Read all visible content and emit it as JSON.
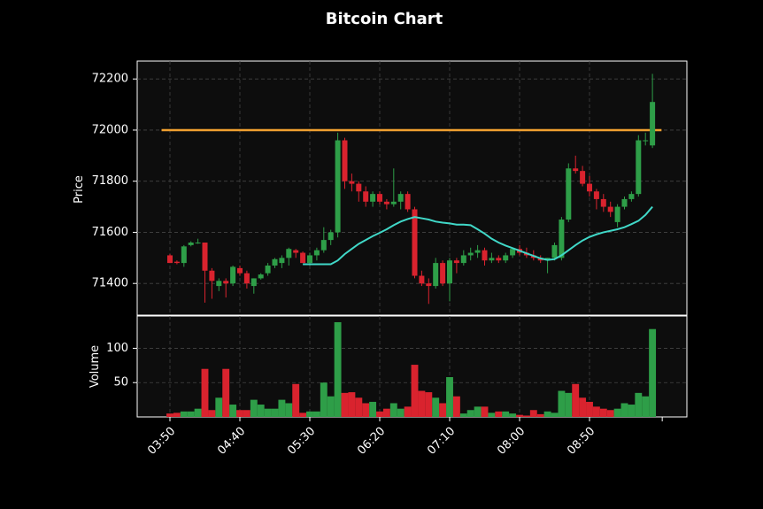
{
  "chart_data": {
    "type": "candlestick",
    "title": "Bitcoin Chart",
    "ylabel": "Price",
    "x": [
      "03:50",
      "03:55",
      "04:00",
      "04:05",
      "04:10",
      "04:15",
      "04:20",
      "04:25",
      "04:30",
      "04:35",
      "04:40",
      "04:45",
      "04:50",
      "04:55",
      "05:00",
      "05:05",
      "05:10",
      "05:15",
      "05:20",
      "05:25",
      "05:30",
      "05:35",
      "05:40",
      "05:45",
      "05:50",
      "05:55",
      "06:00",
      "06:05",
      "06:10",
      "06:15",
      "06:20",
      "06:25",
      "06:30",
      "06:35",
      "06:40",
      "06:45",
      "06:50",
      "06:55",
      "07:00",
      "07:05",
      "07:10",
      "07:15",
      "07:20",
      "07:25",
      "07:30",
      "07:35",
      "07:40",
      "07:45",
      "07:50",
      "07:55",
      "08:00",
      "08:05",
      "08:10",
      "08:15",
      "08:20",
      "08:25",
      "08:30",
      "08:35",
      "08:40",
      "08:45",
      "08:50",
      "08:55",
      "09:00",
      "09:05",
      "09:10",
      "09:15",
      "09:20",
      "09:25",
      "09:30",
      "09:35"
    ],
    "open": [
      71510,
      71485,
      71480,
      71550,
      71560,
      71560,
      71450,
      71390,
      71410,
      71400,
      71460,
      71440,
      71390,
      71420,
      71440,
      71470,
      71480,
      71500,
      71530,
      71520,
      71480,
      71510,
      71530,
      71570,
      71600,
      71960,
      71800,
      71790,
      71760,
      71720,
      71750,
      71720,
      71710,
      71720,
      71750,
      71690,
      71430,
      71400,
      71390,
      71480,
      71400,
      71490,
      71480,
      71510,
      71520,
      71530,
      71490,
      71500,
      71490,
      71510,
      71535,
      71520,
      71510,
      71500,
      71490,
      71500,
      71500,
      71650,
      71850,
      71840,
      71790,
      71760,
      71730,
      71700,
      71640,
      71700,
      71730,
      71750,
      71960,
      71940
    ],
    "high": [
      71515,
      71490,
      71550,
      71565,
      71575,
      71560,
      71460,
      71420,
      71420,
      71470,
      71470,
      71450,
      71420,
      71440,
      71480,
      71500,
      71510,
      71540,
      71535,
      71525,
      71520,
      71540,
      71620,
      71610,
      71990,
      71970,
      71830,
      71800,
      71780,
      71760,
      71760,
      71730,
      71850,
      71760,
      71760,
      71700,
      71450,
      71420,
      71500,
      71490,
      71500,
      71500,
      71530,
      71540,
      71550,
      71540,
      71520,
      71510,
      71520,
      71540,
      71550,
      71540,
      71530,
      71510,
      71500,
      71560,
      71660,
      71870,
      71900,
      71860,
      71820,
      71770,
      71750,
      71720,
      71710,
      71740,
      71760,
      71980,
      71990,
      72220
    ],
    "low": [
      71480,
      71475,
      71465,
      71545,
      71555,
      71325,
      71340,
      71370,
      71345,
      71390,
      71430,
      71380,
      71360,
      71415,
      71430,
      71460,
      71460,
      71470,
      71500,
      71480,
      71470,
      71490,
      71520,
      71550,
      71580,
      71770,
      71760,
      71720,
      71700,
      71700,
      71710,
      71690,
      71700,
      71690,
      71680,
      71420,
      71390,
      71320,
      71380,
      71390,
      71330,
      71440,
      71470,
      71490,
      71500,
      71470,
      71480,
      71480,
      71480,
      71500,
      71510,
      71500,
      71490,
      71480,
      71440,
      71490,
      71490,
      71640,
      71830,
      71780,
      71740,
      71690,
      71680,
      71660,
      71620,
      71690,
      71720,
      71740,
      71940,
      71930
    ],
    "close": [
      71480,
      71480,
      71545,
      71560,
      71560,
      71450,
      71410,
      71410,
      71400,
      71465,
      71440,
      71400,
      71420,
      71435,
      71470,
      71495,
      71500,
      71535,
      71520,
      71480,
      71510,
      71530,
      71570,
      71600,
      71960,
      71800,
      71790,
      71760,
      71720,
      71750,
      71720,
      71710,
      71720,
      71750,
      71690,
      71430,
      71400,
      71390,
      71480,
      71400,
      71490,
      71480,
      71510,
      71520,
      71530,
      71490,
      71500,
      71490,
      71510,
      71535,
      71520,
      71510,
      71500,
      71490,
      71500,
      71550,
      71650,
      71850,
      71840,
      71790,
      71760,
      71730,
      71700,
      71680,
      71700,
      71730,
      71750,
      71960,
      71960,
      72110
    ],
    "up_color": "#2e9e48",
    "down_color": "#d9232e",
    "moving_average": {
      "color": "#40d8c8",
      "values": [
        null,
        null,
        null,
        null,
        null,
        null,
        null,
        null,
        null,
        null,
        null,
        null,
        null,
        null,
        null,
        null,
        null,
        null,
        null,
        71475,
        71475,
        71475,
        71475,
        71475,
        71490,
        71515,
        71535,
        71555,
        71570,
        71585,
        71598,
        71612,
        71628,
        71642,
        71652,
        71660,
        71655,
        71650,
        71642,
        71638,
        71635,
        71630,
        71630,
        71628,
        71612,
        71595,
        71575,
        71560,
        71548,
        71538,
        71528,
        71518,
        71508,
        71498,
        71492,
        71495,
        71510,
        71530,
        71550,
        71568,
        71582,
        71592,
        71600,
        71606,
        71612,
        71620,
        71632,
        71645,
        71668,
        71700
      ]
    },
    "hlines": [
      {
        "value": 72000,
        "color": "#f0a030"
      }
    ],
    "ylim": [
      71276,
      72270
    ],
    "yticks": [
      71400,
      71600,
      71800,
      72000,
      72200
    ],
    "grid": true,
    "volume": {
      "ylabel": "Volume",
      "ylim": [
        0,
        147
      ],
      "yticks": [
        50,
        100
      ],
      "values": [
        5,
        6,
        8,
        8,
        12,
        70,
        10,
        28,
        70,
        18,
        10,
        10,
        25,
        18,
        12,
        12,
        25,
        20,
        48,
        6,
        8,
        8,
        50,
        30,
        138,
        35,
        36,
        28,
        20,
        22,
        8,
        12,
        20,
        12,
        15,
        76,
        38,
        36,
        28,
        20,
        58,
        30,
        5,
        10,
        15,
        15,
        6,
        8,
        8,
        5,
        3,
        2,
        10,
        4,
        8,
        6,
        38,
        35,
        48,
        28,
        22,
        15,
        12,
        10,
        12,
        20,
        18,
        35,
        30,
        128
      ]
    }
  }
}
